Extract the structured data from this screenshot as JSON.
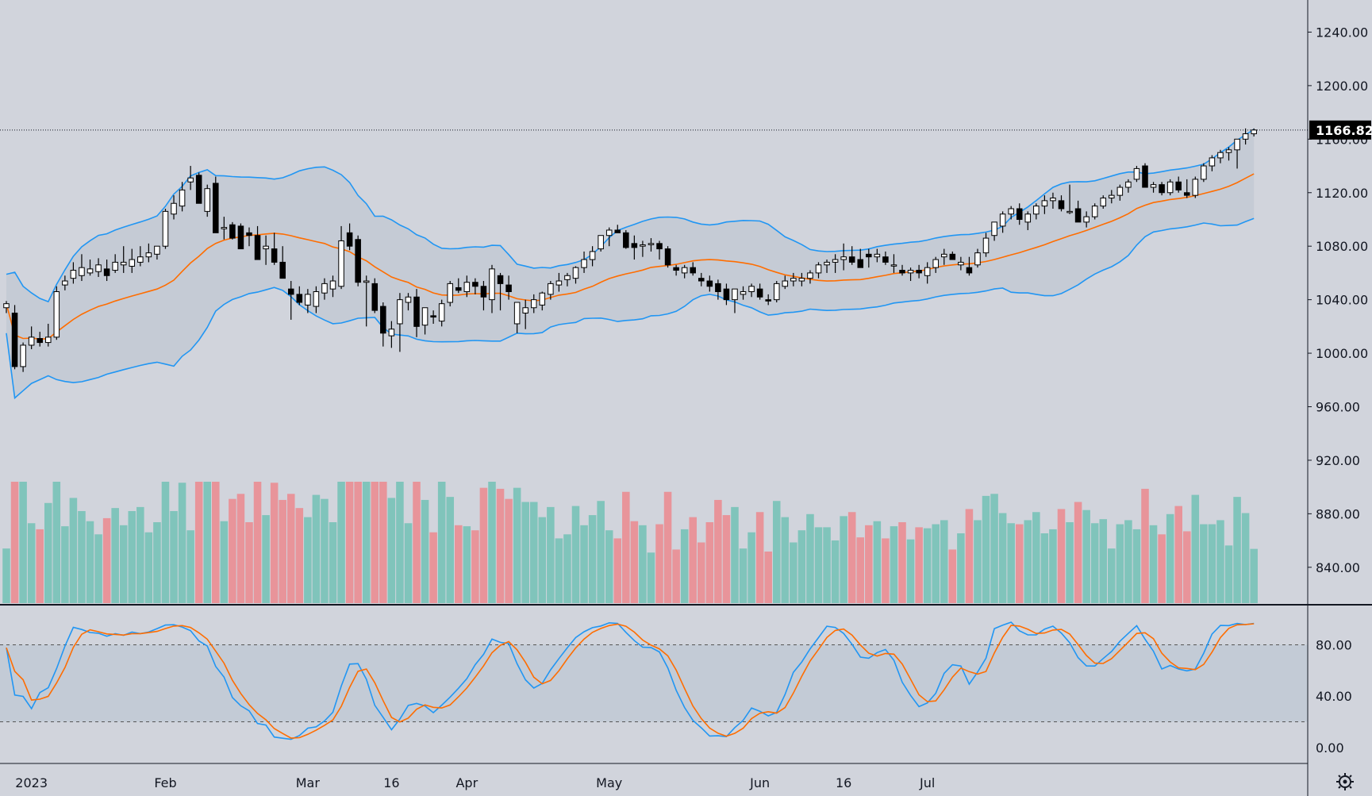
{
  "colors": {
    "background": "#d1d4dc",
    "up_candle_fill": "#ffffff",
    "down_candle_fill": "#000000",
    "candle_outline": "#000000",
    "bollinger_fill": "#c3c9d4",
    "bollinger_band": "#2196f3",
    "bollinger_basis": "#ff6d00",
    "volume_up": "#80c4bb",
    "volume_down": "#e8949a",
    "stoch_k": "#2196f3",
    "stoch_d": "#ff6d00",
    "stoch_band": "#c3cbd6",
    "last_price_bg": "#000000"
  },
  "chart_data": {
    "type": "candlestick",
    "panels": [
      "price",
      "volume",
      "stochastic"
    ],
    "price_axis": {
      "ticks": [
        "1240.00",
        "1200.00",
        "1160.00",
        "1120.00",
        "1080.00",
        "1040.00",
        "1000.00",
        "960.00",
        "920.00",
        "880.00",
        "840.00"
      ],
      "tick_values": [
        1240,
        1200,
        1160,
        1120,
        1080,
        1040,
        1000,
        960,
        920,
        880,
        840
      ],
      "range": [
        812,
        1264
      ]
    },
    "last_price": 1166.82,
    "last_price_label": "1166.82",
    "time_axis": {
      "labels": [
        "2023",
        "Feb",
        "Mar",
        "16",
        "Apr",
        "May",
        "Jun",
        "16",
        "Jul"
      ],
      "label_bar_index": [
        3,
        19,
        36,
        46,
        55,
        72,
        90,
        100,
        110
      ]
    },
    "candles_ohlc": [
      [
        1034,
        1039,
        1030,
        1037
      ],
      [
        1030,
        1036,
        988,
        990
      ],
      [
        990,
        1008,
        986,
        1006
      ],
      [
        1006,
        1020,
        1003,
        1012
      ],
      [
        1011,
        1016,
        1005,
        1008
      ],
      [
        1008,
        1022,
        1005,
        1012
      ],
      [
        1012,
        1050,
        1010,
        1046
      ],
      [
        1051,
        1058,
        1047,
        1054
      ],
      [
        1056,
        1068,
        1052,
        1062
      ],
      [
        1058,
        1074,
        1054,
        1064
      ],
      [
        1060,
        1070,
        1058,
        1063
      ],
      [
        1061,
        1071,
        1057,
        1066
      ],
      [
        1063,
        1070,
        1054,
        1058
      ],
      [
        1062,
        1074,
        1060,
        1068
      ],
      [
        1066,
        1080,
        1060,
        1068
      ],
      [
        1065,
        1078,
        1060,
        1070
      ],
      [
        1068,
        1080,
        1065,
        1072
      ],
      [
        1072,
        1082,
        1068,
        1075
      ],
      [
        1074,
        1080,
        1070,
        1080
      ],
      [
        1080,
        1108,
        1078,
        1106
      ],
      [
        1104,
        1118,
        1100,
        1112
      ],
      [
        1110,
        1128,
        1106,
        1122
      ],
      [
        1128,
        1140,
        1122,
        1131
      ],
      [
        1133,
        1135,
        1112,
        1112
      ],
      [
        1106,
        1126,
        1102,
        1123
      ],
      [
        1127,
        1132,
        1090,
        1090
      ],
      [
        1093,
        1102,
        1085,
        1094
      ],
      [
        1096,
        1098,
        1085,
        1086
      ],
      [
        1095,
        1097,
        1078,
        1078
      ],
      [
        1090,
        1094,
        1080,
        1088
      ],
      [
        1088,
        1095,
        1070,
        1070
      ],
      [
        1078,
        1088,
        1066,
        1080
      ],
      [
        1078,
        1090,
        1066,
        1068
      ],
      [
        1068,
        1080,
        1056,
        1056
      ],
      [
        1048,
        1054,
        1025,
        1044
      ],
      [
        1044,
        1050,
        1036,
        1038
      ],
      [
        1036,
        1048,
        1030,
        1044
      ],
      [
        1035,
        1050,
        1030,
        1046
      ],
      [
        1045,
        1056,
        1040,
        1052
      ],
      [
        1048,
        1058,
        1042,
        1054
      ],
      [
        1050,
        1095,
        1048,
        1084
      ],
      [
        1090,
        1097,
        1077,
        1080
      ],
      [
        1085,
        1088,
        1050,
        1053
      ],
      [
        1053,
        1058,
        1020,
        1054
      ],
      [
        1052,
        1056,
        1030,
        1032
      ],
      [
        1035,
        1038,
        1005,
        1015
      ],
      [
        1013,
        1024,
        1004,
        1018
      ],
      [
        1022,
        1045,
        1001,
        1040
      ],
      [
        1038,
        1045,
        1032,
        1042
      ],
      [
        1042,
        1048,
        1012,
        1020
      ],
      [
        1021,
        1034,
        1014,
        1034
      ],
      [
        1028,
        1032,
        1022,
        1027
      ],
      [
        1024,
        1040,
        1020,
        1037
      ],
      [
        1038,
        1054,
        1035,
        1052
      ],
      [
        1049,
        1056,
        1045,
        1047
      ],
      [
        1046,
        1058,
        1042,
        1053
      ],
      [
        1053,
        1056,
        1044,
        1050
      ],
      [
        1050,
        1054,
        1032,
        1042
      ],
      [
        1040,
        1066,
        1030,
        1063
      ],
      [
        1058,
        1060,
        1032,
        1052
      ],
      [
        1051,
        1058,
        1040,
        1046
      ],
      [
        1022,
        1038,
        1015,
        1038
      ],
      [
        1030,
        1040,
        1018,
        1034
      ],
      [
        1034,
        1044,
        1030,
        1040
      ],
      [
        1036,
        1046,
        1032,
        1045
      ],
      [
        1044,
        1054,
        1040,
        1052
      ],
      [
        1051,
        1060,
        1046,
        1054
      ],
      [
        1055,
        1060,
        1050,
        1058
      ],
      [
        1056,
        1065,
        1052,
        1064
      ],
      [
        1064,
        1076,
        1060,
        1070
      ],
      [
        1070,
        1080,
        1065,
        1076
      ],
      [
        1078,
        1088,
        1076,
        1088
      ],
      [
        1088,
        1094,
        1080,
        1092
      ],
      [
        1092,
        1096,
        1090,
        1090
      ],
      [
        1090,
        1092,
        1078,
        1079
      ],
      [
        1082,
        1088,
        1070,
        1079
      ],
      [
        1080,
        1084,
        1072,
        1081
      ],
      [
        1082,
        1086,
        1076,
        1082
      ],
      [
        1082,
        1084,
        1070,
        1078
      ],
      [
        1078,
        1080,
        1064,
        1066
      ],
      [
        1064,
        1066,
        1058,
        1062
      ],
      [
        1060,
        1066,
        1056,
        1064
      ],
      [
        1064,
        1068,
        1058,
        1060
      ],
      [
        1056,
        1060,
        1050,
        1054
      ],
      [
        1054,
        1058,
        1046,
        1050
      ],
      [
        1052,
        1055,
        1040,
        1046
      ],
      [
        1048,
        1052,
        1036,
        1040
      ],
      [
        1040,
        1044,
        1030,
        1048
      ],
      [
        1044,
        1050,
        1040,
        1046
      ],
      [
        1046,
        1052,
        1042,
        1050
      ],
      [
        1048,
        1052,
        1040,
        1042
      ],
      [
        1040,
        1044,
        1036,
        1039
      ],
      [
        1040,
        1054,
        1038,
        1052
      ],
      [
        1050,
        1058,
        1048,
        1054
      ],
      [
        1054,
        1060,
        1050,
        1056
      ],
      [
        1054,
        1060,
        1050,
        1056
      ],
      [
        1056,
        1062,
        1052,
        1060
      ],
      [
        1060,
        1068,
        1056,
        1066
      ],
      [
        1066,
        1070,
        1060,
        1068
      ],
      [
        1068,
        1074,
        1060,
        1070
      ],
      [
        1070,
        1082,
        1062,
        1072
      ],
      [
        1072,
        1080,
        1066,
        1068
      ],
      [
        1070,
        1078,
        1068,
        1064
      ],
      [
        1074,
        1078,
        1064,
        1072
      ],
      [
        1072,
        1078,
        1068,
        1074
      ],
      [
        1072,
        1076,
        1066,
        1068
      ],
      [
        1066,
        1074,
        1060,
        1066
      ],
      [
        1062,
        1066,
        1058,
        1060
      ],
      [
        1060,
        1064,
        1054,
        1062
      ],
      [
        1062,
        1066,
        1056,
        1060
      ],
      [
        1058,
        1068,
        1052,
        1064
      ],
      [
        1064,
        1072,
        1060,
        1070
      ],
      [
        1072,
        1078,
        1066,
        1074
      ],
      [
        1074,
        1076,
        1070,
        1070
      ],
      [
        1066,
        1072,
        1062,
        1068
      ],
      [
        1064,
        1072,
        1058,
        1060
      ],
      [
        1066,
        1078,
        1064,
        1075
      ],
      [
        1075,
        1090,
        1072,
        1086
      ],
      [
        1088,
        1098,
        1084,
        1098
      ],
      [
        1095,
        1106,
        1090,
        1104
      ],
      [
        1104,
        1110,
        1100,
        1108
      ],
      [
        1108,
        1112,
        1096,
        1100
      ],
      [
        1098,
        1106,
        1092,
        1104
      ],
      [
        1104,
        1112,
        1100,
        1110
      ],
      [
        1110,
        1118,
        1104,
        1114
      ],
      [
        1114,
        1120,
        1108,
        1116
      ],
      [
        1114,
        1118,
        1106,
        1108
      ],
      [
        1106,
        1126,
        1104,
        1106
      ],
      [
        1108,
        1114,
        1098,
        1098
      ],
      [
        1098,
        1106,
        1094,
        1102
      ],
      [
        1102,
        1112,
        1100,
        1110
      ],
      [
        1110,
        1118,
        1108,
        1116
      ],
      [
        1116,
        1122,
        1112,
        1118
      ],
      [
        1118,
        1126,
        1114,
        1124
      ],
      [
        1124,
        1130,
        1120,
        1128
      ],
      [
        1130,
        1140,
        1128,
        1138
      ],
      [
        1140,
        1142,
        1124,
        1124
      ],
      [
        1124,
        1128,
        1120,
        1126
      ],
      [
        1126,
        1128,
        1118,
        1120
      ],
      [
        1120,
        1130,
        1118,
        1128
      ],
      [
        1128,
        1132,
        1120,
        1122
      ],
      [
        1120,
        1130,
        1116,
        1118
      ],
      [
        1118,
        1132,
        1116,
        1130
      ],
      [
        1130,
        1142,
        1128,
        1140
      ],
      [
        1140,
        1148,
        1136,
        1146
      ],
      [
        1146,
        1152,
        1142,
        1150
      ],
      [
        1150,
        1154,
        1144,
        1152
      ],
      [
        1152,
        1160,
        1138,
        1160
      ],
      [
        1160,
        1168,
        1156,
        1164
      ],
      [
        1164,
        1168,
        1162,
        1166.82
      ]
    ],
    "bollinger_upper": [],
    "bollinger_basis": [],
    "bollinger_lower": [],
    "volume_relative": [],
    "stochastic": {
      "levels": [
        80,
        20
      ],
      "ticks": [
        "80.00",
        "40.00",
        "0.00"
      ],
      "tick_values": [
        80,
        40,
        0
      ],
      "range": [
        -10,
        110
      ],
      "k": [],
      "d": []
    }
  }
}
